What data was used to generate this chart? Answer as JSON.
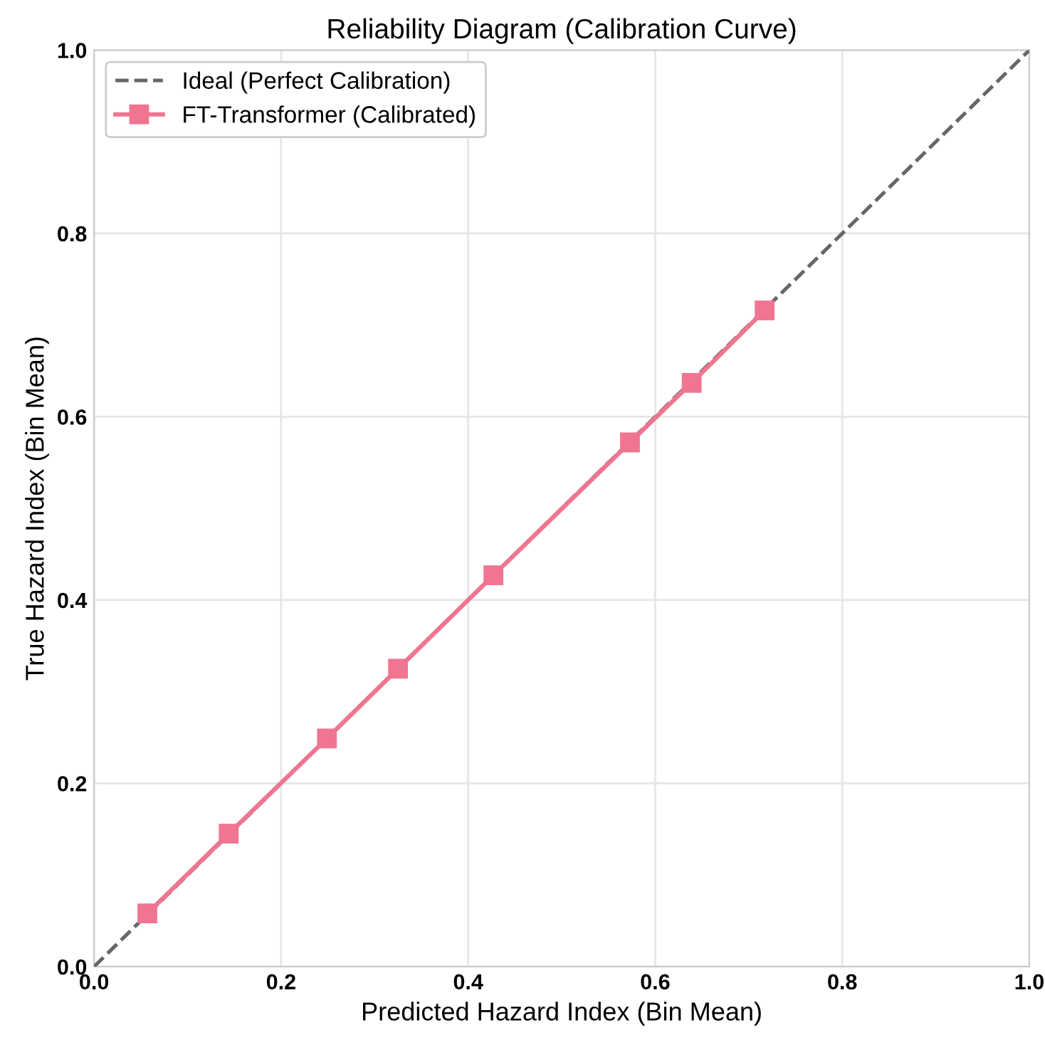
{
  "chart_data": {
    "type": "line",
    "title": "Reliability Diagram (Calibration Curve)",
    "xlabel": "Predicted Hazard Index (Bin Mean)",
    "ylabel": "True Hazard Index (Bin Mean)",
    "series": [
      {
        "name": "Ideal (Perfect Calibration)",
        "color": "#666666",
        "x": [
          0,
          1
        ],
        "values": [
          0,
          1
        ],
        "line_style": "dashed",
        "marker": "none"
      },
      {
        "name": "FT-Transformer (Calibrated)",
        "color": "#f07590",
        "x": [
          0.057,
          0.144,
          0.249,
          0.325,
          0.427,
          0.573,
          0.639,
          0.717
        ],
        "values": [
          0.058,
          0.145,
          0.249,
          0.325,
          0.427,
          0.572,
          0.637,
          0.716
        ],
        "line_style": "solid",
        "marker": "square"
      }
    ],
    "xlim": [
      0,
      1
    ],
    "ylim": [
      0,
      1
    ],
    "xticks": [
      {
        "value": 0,
        "label": "0.0"
      },
      0.2,
      0.4,
      0.6,
      0.8,
      {
        "value": 1,
        "label": "1.0"
      }
    ],
    "yticks": [
      {
        "value": 0,
        "label": "0.0"
      },
      0.2,
      0.4,
      0.6,
      0.8,
      {
        "value": 1,
        "label": "1.0"
      }
    ],
    "grid": true,
    "legend": "top left"
  }
}
